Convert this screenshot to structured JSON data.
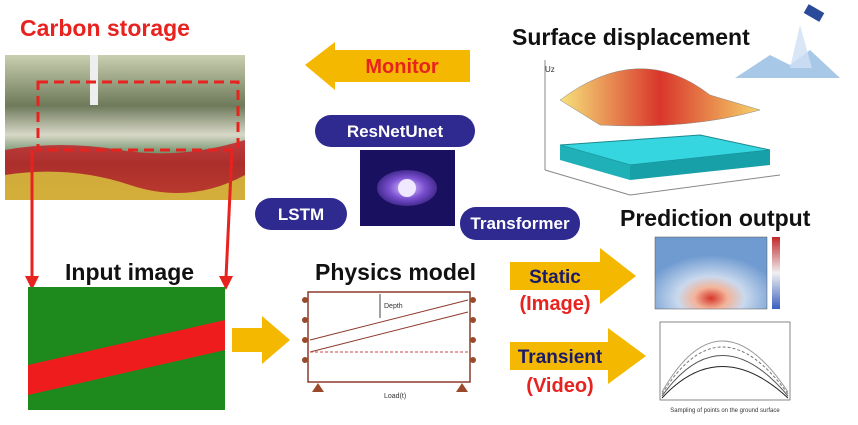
{
  "title_carbon": "Carbon storage",
  "title_surface": "Surface displacement",
  "monitor": "Monitor",
  "models": {
    "resnetunet": "ResNetUnet",
    "lstm": "LSTM",
    "transformer": "Transformer"
  },
  "title_prediction": "Prediction output",
  "title_input": "Input image",
  "title_physics": "Physics model",
  "static": {
    "label": "Static",
    "sub": "(Image)"
  },
  "transient": {
    "label": "Transient",
    "sub": "(Video)"
  },
  "physics_labels": {
    "depth": "Depth",
    "load": "Load(t)"
  },
  "plot_labels": {
    "uz": "Uz",
    "x_axis": "Sampling of points on the ground surface"
  }
}
